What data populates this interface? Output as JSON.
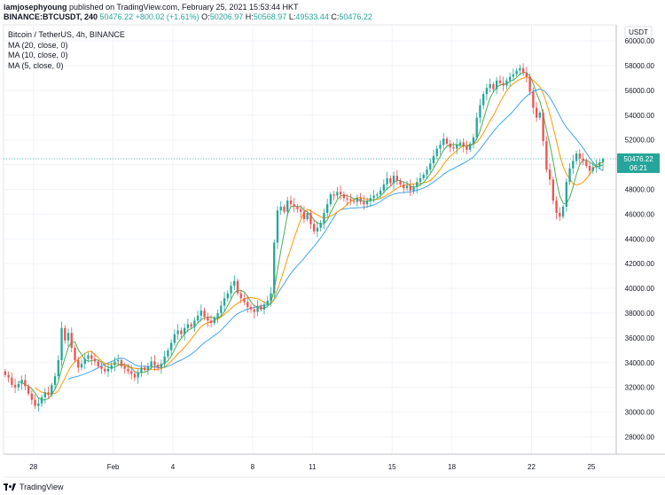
{
  "header": {
    "author": "iamjosephyoung",
    "published": "published on TradingView.com, February 25, 2021 15:53:44 HKT",
    "symbol": "BINANCE:BTCUSDT, 240",
    "last": "50476.22",
    "change": "+800.02 (+1.61%)",
    "o_label": "O:",
    "o": "50206.97",
    "h_label": "H:",
    "h": "50568.97",
    "l_label": "L:",
    "l": "49533.44",
    "c_label": "C:",
    "c": "50476.22"
  },
  "legend": {
    "title": "Bitcoin / TetherUS, 4h, BINANCE",
    "ma20": "MA (20, close, 0)",
    "ma10": "MA (10, close, 0)",
    "ma5": "MA (5, close, 0)"
  },
  "footer": {
    "brand": "TradingView"
  },
  "colors": {
    "up": "#26a69a",
    "down": "#ef5350",
    "ma20": "#42a5f5",
    "ma10": "#ff9800",
    "ma5": "#4caf50"
  },
  "chart_data": {
    "type": "candlestick",
    "currency": "USDT",
    "last_price_label": "50476.22",
    "countdown_label": "06:21",
    "y_ticks": [
      "28000.00",
      "30000.00",
      "32000.00",
      "34000.00",
      "36000.00",
      "38000.00",
      "40000.00",
      "42000.00",
      "44000.00",
      "46000.00",
      "48000.00",
      "50000.00",
      "52000.00",
      "54000.00",
      "56000.00",
      "58000.00",
      "60000.00"
    ],
    "y_range": [
      26600,
      61300
    ],
    "x_ticks": [
      "28",
      "Feb",
      "4",
      "8",
      "11",
      "15",
      "18",
      "22",
      "25"
    ],
    "x_tick_dates": [
      "2021-01-28",
      "2021-02-01",
      "2021-02-04",
      "2021-02-08",
      "2021-02-11",
      "2021-02-15",
      "2021-02-18",
      "2021-02-22",
      "2021-02-25"
    ],
    "x_range": [
      "2021-01-26T12:00",
      "2021-02-26T06:00"
    ],
    "interval_hours": 4,
    "first_candle": "2021-01-26T12:00",
    "closes": [
      33000,
      32800,
      32200,
      32000,
      32300,
      32600,
      32100,
      31500,
      31000,
      30500,
      30700,
      31200,
      31600,
      31400,
      32200,
      32900,
      34200,
      36800,
      35800,
      36400,
      35200,
      34200,
      33600,
      33900,
      34300,
      34600,
      34300,
      34100,
      33700,
      33500,
      33300,
      33500,
      33800,
      34100,
      34200,
      33700,
      33500,
      33300,
      33100,
      32800,
      33200,
      33600,
      33400,
      33700,
      34100,
      33800,
      33600,
      33900,
      34500,
      35000,
      35600,
      36300,
      36600,
      36300,
      36800,
      37100,
      36900,
      37400,
      37800,
      38200,
      37700,
      37400,
      37200,
      37600,
      38000,
      38600,
      39200,
      39600,
      40200,
      40600,
      39600,
      39200,
      38900,
      38500,
      38300,
      38100,
      38600,
      38300,
      38700,
      39000,
      39600,
      43700,
      46300,
      46600,
      46200,
      47100,
      46800,
      46600,
      46400,
      46200,
      45600,
      46100,
      45200,
      44600,
      44900,
      45300,
      46100,
      46800,
      47600,
      47500,
      47800,
      47600,
      47300,
      47200,
      47100,
      47000,
      47300,
      47000,
      46800,
      47100,
      47300,
      47500,
      47600,
      47900,
      48400,
      48900,
      48500,
      49100,
      48700,
      48400,
      48100,
      48300,
      47900,
      48200,
      48600,
      48900,
      49200,
      49600,
      50100,
      50700,
      51300,
      51600,
      52100,
      51700,
      51400,
      51300,
      51600,
      51800,
      51500,
      51200,
      51700,
      52200,
      53800,
      54800,
      55700,
      56200,
      56500,
      56100,
      56800,
      56600,
      56400,
      56800,
      57100,
      57300,
      57600,
      57800,
      57400,
      57100,
      55900,
      54600,
      53800,
      54200,
      51900,
      49600,
      48800,
      47100,
      46100,
      45800,
      46600,
      48600,
      49700,
      50300,
      50900,
      50500,
      50300,
      49900,
      49500,
      49800,
      49900,
      50200,
      50476.22
    ],
    "ohlc_last": {
      "open": 50206.97,
      "high": 50568.97,
      "low": 49533.44,
      "close": 50476.22
    },
    "series": [
      {
        "name": "MA (20, close, 0)",
        "period": 20
      },
      {
        "name": "MA (10, close, 0)",
        "period": 10
      },
      {
        "name": "MA (5, close, 0)",
        "period": 5
      }
    ],
    "title": "Bitcoin / TetherUS, 4h, BINANCE",
    "grid": true,
    "legend_position": "top-left"
  }
}
